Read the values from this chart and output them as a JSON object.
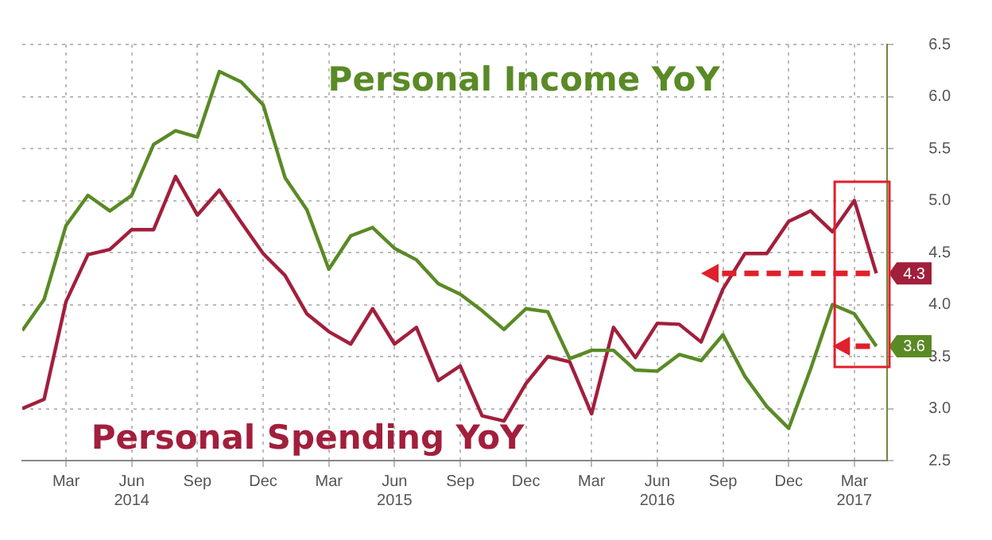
{
  "chart_data": {
    "type": "line",
    "x": [
      "2014-01",
      "2014-02",
      "2014-03",
      "2014-04",
      "2014-05",
      "2014-06",
      "2014-07",
      "2014-08",
      "2014-09",
      "2014-10",
      "2014-11",
      "2014-12",
      "2015-01",
      "2015-02",
      "2015-03",
      "2015-04",
      "2015-05",
      "2015-06",
      "2015-07",
      "2015-08",
      "2015-09",
      "2015-10",
      "2015-11",
      "2015-12",
      "2016-01",
      "2016-02",
      "2016-03",
      "2016-04",
      "2016-05",
      "2016-06",
      "2016-07",
      "2016-08",
      "2016-09",
      "2016-10",
      "2016-11",
      "2016-12",
      "2017-01",
      "2017-02",
      "2017-03",
      "2017-04"
    ],
    "series": [
      {
        "name": "Personal Income YoY",
        "color": "#5a8a26",
        "values": [
          3.75,
          4.05,
          4.76,
          5.05,
          4.9,
          5.05,
          5.54,
          5.67,
          5.61,
          6.24,
          6.14,
          5.92,
          5.22,
          4.91,
          4.34,
          4.66,
          4.74,
          4.54,
          4.43,
          4.2,
          4.1,
          3.94,
          3.76,
          3.96,
          3.93,
          3.48,
          3.56,
          3.56,
          3.37,
          3.36,
          3.52,
          3.46,
          3.71,
          3.31,
          3.02,
          2.81,
          3.38,
          4.0,
          3.91,
          3.6
        ],
        "value_labels": [
          null,
          null,
          null,
          null,
          null,
          null,
          null,
          null,
          null,
          null,
          null,
          null,
          null,
          null,
          null,
          null,
          null,
          null,
          null,
          null,
          null,
          null,
          null,
          null,
          null,
          null,
          null,
          null,
          null,
          null,
          null,
          null,
          null,
          null,
          null,
          null,
          null,
          null,
          null,
          "3.6"
        ]
      },
      {
        "name": "Personal Spending YoY",
        "color": "#a21f3c",
        "values": [
          3.0,
          3.09,
          4.03,
          4.48,
          4.53,
          4.72,
          4.72,
          5.23,
          4.86,
          5.1,
          4.79,
          4.49,
          4.28,
          3.91,
          3.74,
          3.62,
          3.96,
          3.62,
          3.78,
          3.27,
          3.41,
          2.93,
          2.88,
          3.24,
          3.5,
          3.45,
          2.95,
          3.78,
          3.49,
          3.82,
          3.81,
          3.64,
          4.15,
          4.49,
          4.49,
          4.8,
          4.9,
          4.7,
          5.0,
          4.3
        ],
        "value_labels": [
          null,
          null,
          null,
          null,
          null,
          null,
          null,
          null,
          null,
          null,
          null,
          null,
          null,
          null,
          null,
          null,
          null,
          null,
          null,
          null,
          null,
          null,
          null,
          null,
          null,
          null,
          null,
          null,
          null,
          null,
          null,
          null,
          null,
          null,
          null,
          null,
          null,
          null,
          null,
          "4.3"
        ]
      }
    ],
    "xlim": [
      "2014-01",
      "2017-04-16"
    ],
    "xticks": [
      {
        "value": "2014-03",
        "label": "Mar"
      },
      {
        "value": "2014-06",
        "label": "Jun\n2014"
      },
      {
        "value": "2014-09",
        "label": "Sep"
      },
      {
        "value": "2014-12",
        "label": "Dec"
      },
      {
        "value": "2015-03",
        "label": "Mar"
      },
      {
        "value": "2015-06",
        "label": "Jun\n2015"
      },
      {
        "value": "2015-09",
        "label": "Sep"
      },
      {
        "value": "2015-12",
        "label": "Dec"
      },
      {
        "value": "2016-03",
        "label": "Mar"
      },
      {
        "value": "2016-06",
        "label": "Jun\n2016"
      },
      {
        "value": "2016-09",
        "label": "Sep"
      },
      {
        "value": "2016-12",
        "label": "Dec"
      },
      {
        "value": "2017-03",
        "label": "Mar\n2017"
      }
    ],
    "ylim": [
      2.5,
      6.5
    ],
    "yticks": [
      {
        "value": 2.5,
        "label": "2.5"
      },
      {
        "value": 3,
        "label": "3.0"
      },
      {
        "value": 3.5,
        "label": "3.5"
      },
      {
        "value": 4,
        "label": "4.0"
      },
      {
        "value": 4.5,
        "label": "4.5"
      },
      {
        "value": 5,
        "label": "5.0"
      },
      {
        "value": 5.5,
        "label": "5.5"
      },
      {
        "value": 6,
        "label": "6.0"
      },
      {
        "value": 6.5,
        "label": "6.5"
      }
    ],
    "grid": true,
    "legend": false,
    "marker": "none",
    "line_style": "solid"
  }
}
